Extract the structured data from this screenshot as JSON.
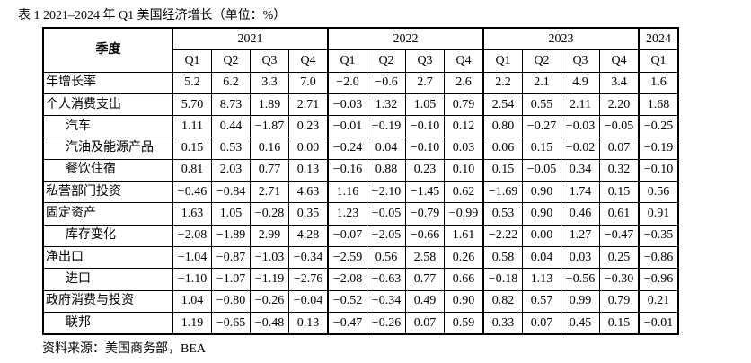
{
  "title": "表 1 2021–2024 年 Q1 美国经济增长（单位：%）",
  "table": {
    "header": {
      "stub": "季度",
      "years": [
        {
          "label": "2021",
          "quarters": [
            "Q1",
            "Q2",
            "Q3",
            "Q4"
          ]
        },
        {
          "label": "2022",
          "quarters": [
            "Q1",
            "Q2",
            "Q3",
            "Q4"
          ]
        },
        {
          "label": "2023",
          "quarters": [
            "Q1",
            "Q2",
            "Q3",
            "Q4"
          ]
        },
        {
          "label": "2024",
          "quarters": [
            "Q1"
          ]
        }
      ]
    },
    "rows": [
      {
        "label": "年增长率",
        "values": [
          "5.2",
          "6.2",
          "3.3",
          "7.0",
          "−2.0",
          "−0.6",
          "2.7",
          "2.6",
          "2.2",
          "2.1",
          "4.9",
          "3.4",
          "1.6"
        ]
      },
      {
        "label": "个人消费支出",
        "values": [
          "5.70",
          "8.73",
          "1.89",
          "2.71",
          "−0.03",
          "1.32",
          "1.05",
          "0.79",
          "2.54",
          "0.55",
          "2.11",
          "2.20",
          "1.68"
        ]
      },
      {
        "label": "汽车",
        "values": [
          "1.11",
          "0.44",
          "−1.87",
          "0.23",
          "−0.01",
          "−0.19",
          "−0.10",
          "0.12",
          "0.80",
          "−0.27",
          "−0.03",
          "−0.05",
          "−0.25"
        ]
      },
      {
        "label": "汽油及能源产品",
        "values": [
          "0.15",
          "0.53",
          "0.16",
          "0.00",
          "−0.24",
          "0.04",
          "−0.10",
          "0.03",
          "0.06",
          "0.15",
          "−0.02",
          "0.07",
          "−0.19"
        ]
      },
      {
        "label": "餐饮住宿",
        "values": [
          "0.81",
          "2.03",
          "0.77",
          "0.13",
          "−0.16",
          "0.88",
          "0.23",
          "0.10",
          "0.15",
          "−0.05",
          "0.34",
          "0.32",
          "−0.10"
        ]
      },
      {
        "label": "私营部门投资",
        "values": [
          "−0.46",
          "−0.84",
          "2.71",
          "4.63",
          "1.16",
          "−2.10",
          "−1.45",
          "0.62",
          "−1.69",
          "0.90",
          "1.74",
          "0.15",
          "0.56"
        ]
      },
      {
        "label": "固定资产",
        "values": [
          "1.63",
          "1.05",
          "−0.28",
          "0.35",
          "1.23",
          "−0.05",
          "−0.79",
          "−0.99",
          "0.53",
          "0.90",
          "0.46",
          "0.61",
          "0.91"
        ]
      },
      {
        "label": "库存变化",
        "values": [
          "−2.08",
          "−1.89",
          "2.99",
          "4.28",
          "−0.07",
          "−2.05",
          "−0.66",
          "1.61",
          "−2.22",
          "0.00",
          "1.27",
          "−0.47",
          "−0.35"
        ]
      },
      {
        "label": "净出口",
        "values": [
          "−1.04",
          "−0.87",
          "−1.03",
          "−0.34",
          "−2.59",
          "0.56",
          "2.58",
          "0.26",
          "0.58",
          "0.04",
          "0.03",
          "0.25",
          "−0.86"
        ]
      },
      {
        "label": "进口",
        "values": [
          "−1.10",
          "−1.07",
          "−1.19",
          "−2.76",
          "−2.08",
          "−0.63",
          "0.77",
          "0.66",
          "−0.18",
          "1.13",
          "−0.56",
          "−0.30",
          "−0.96"
        ]
      },
      {
        "label": "政府消费与投资",
        "values": [
          "1.04",
          "−0.80",
          "−0.26",
          "−0.04",
          "−0.52",
          "−0.34",
          "0.49",
          "0.90",
          "0.82",
          "0.57",
          "0.99",
          "0.79",
          "0.21"
        ]
      },
      {
        "label": "联邦",
        "values": [
          "1.19",
          "−0.65",
          "−0.48",
          "0.13",
          "−0.47",
          "−0.26",
          "0.07",
          "0.59",
          "0.33",
          "0.07",
          "0.45",
          "0.15",
          "−0.01"
        ]
      }
    ]
  },
  "source": "资料来源：美国商务部，BEA"
}
